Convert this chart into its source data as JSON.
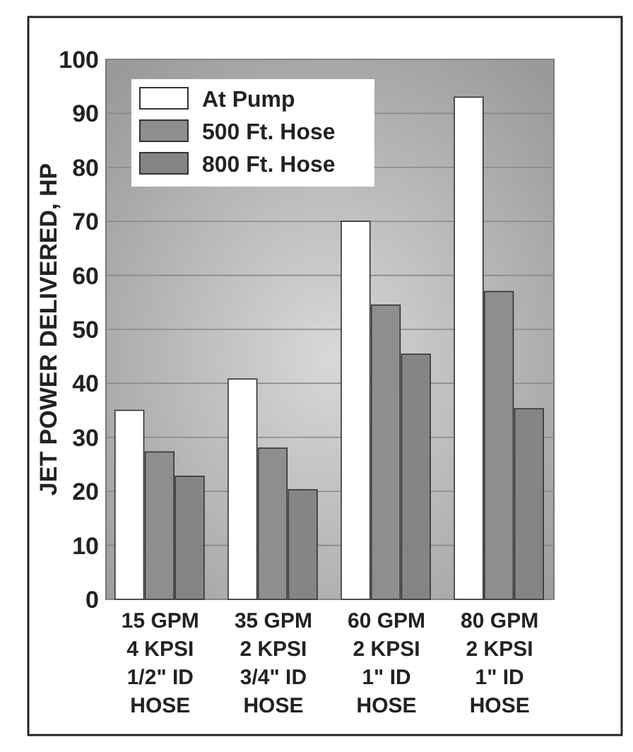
{
  "chart_data": {
    "type": "bar",
    "ylabel": "JET POWER DELIVERED, HP",
    "categories": [
      "15 GPM\n4 KPSI\n1/2\" ID\nHOSE",
      "35 GPM\n2 KPSI\n3/4\" ID\nHOSE",
      "60 GPM\n2 KPSI\n1\" ID\nHOSE",
      "80 GPM\n2 KPSI\n1\" ID\nHOSE"
    ],
    "series": [
      {
        "name": "At Pump",
        "color": "#ffffff",
        "values": [
          35,
          40.8,
          70,
          93
        ]
      },
      {
        "name": "500 Ft. Hose",
        "color": "#8e8e8e",
        "values": [
          27.3,
          28,
          54.5,
          57
        ]
      },
      {
        "name": "800 Ft. Hose",
        "color": "#858585",
        "values": [
          22.8,
          20.3,
          45.4,
          35.3
        ]
      }
    ],
    "ylim": [
      0,
      100
    ],
    "yticks": [
      0,
      10,
      20,
      30,
      40,
      50,
      60,
      70,
      80,
      90,
      100
    ],
    "grid": "y",
    "legend": "top left"
  }
}
